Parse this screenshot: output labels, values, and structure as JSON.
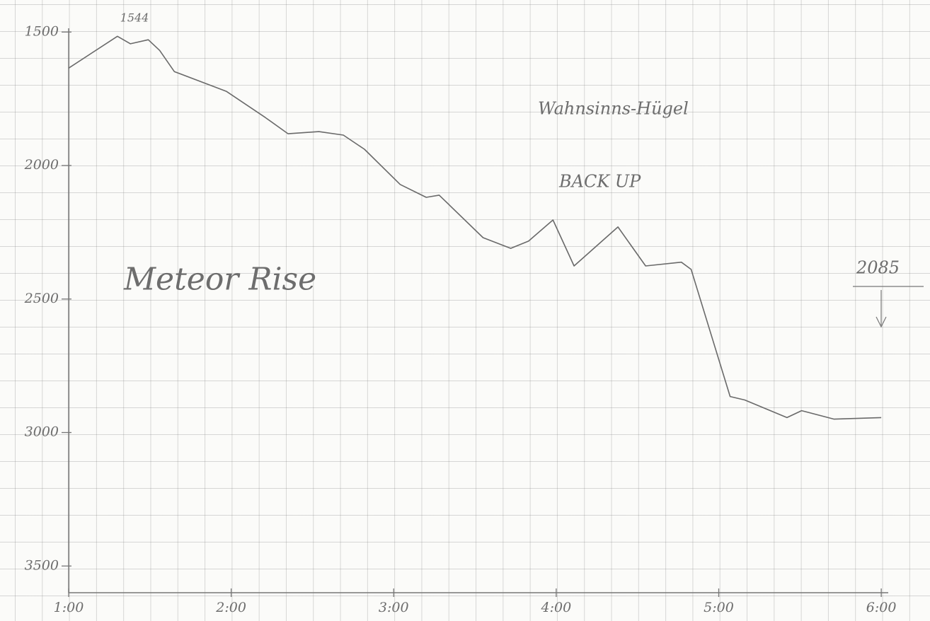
{
  "chart_data": {
    "type": "line",
    "title": "Meteor Rise",
    "annotations": [
      "1544",
      "Wahnsinns-Hügel",
      "BACK UP",
      "2085"
    ],
    "x": [
      1.0,
      1.3,
      1.38,
      1.49,
      1.56,
      1.65,
      1.97,
      2.21,
      2.35,
      2.54,
      2.69,
      2.82,
      3.04,
      3.2,
      3.28,
      3.55,
      3.72,
      3.83,
      3.98,
      4.11,
      4.38,
      4.55,
      4.77,
      4.83,
      5.07,
      5.16,
      5.42,
      5.51,
      5.71,
      6.0
    ],
    "series": [
      {
        "color": "#6a6a6a",
        "values": [
          1635,
          1516,
          1544,
          1529,
          1569,
          1648,
          1722,
          1820,
          1881,
          1873,
          1886,
          1939,
          2071,
          2119,
          2111,
          2270,
          2310,
          2283,
          2204,
          2376,
          2230,
          2376,
          2362,
          2389,
          2865,
          2878,
          2944,
          2918,
          2950,
          2944
        ]
      }
    ],
    "xlim": [
      1,
      6.3
    ],
    "xticks": [
      {
        "value": 1,
        "label": "1:00"
      },
      {
        "value": 2,
        "label": "2:00"
      },
      {
        "value": 3,
        "label": "3:00"
      },
      {
        "value": 4,
        "label": "4:00"
      },
      {
        "value": 5,
        "label": "5:00"
      },
      {
        "value": 6,
        "label": "6:00"
      }
    ],
    "ylim": [
      3600,
      1380
    ],
    "yticks": [
      1500,
      2000,
      2500,
      3000,
      3500
    ]
  }
}
